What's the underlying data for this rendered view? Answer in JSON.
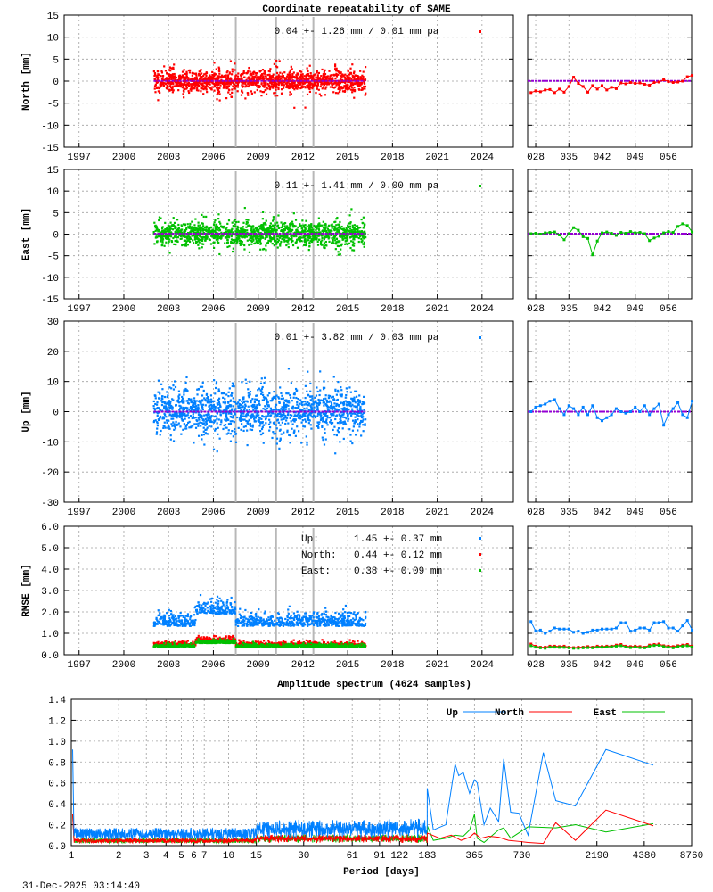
{
  "page": {
    "title": "Coordinate repeatability of SAME",
    "spectrum_title": "Amplitude spectrum (4624 samples)",
    "timestamp": "31-Dec-2025 03:14:40"
  },
  "chart_data": [
    {
      "id": "north",
      "type": "scatter",
      "ylabel": "North [mm]",
      "ylim": [
        -15,
        15
      ],
      "yticks": [
        "-15",
        "-10",
        "-5",
        "0",
        "5",
        "10",
        "15"
      ],
      "xlim": [
        1996,
        2026.1
      ],
      "xticks": [
        "1997",
        "2000",
        "2003",
        "2006",
        "2009",
        "2012",
        "2015",
        "2018",
        "2021",
        "2024"
      ],
      "annotation": "0.04 +- 1.26 mm /  0.01 mm pa",
      "mean": 0.04,
      "std": 1.26,
      "rate": 0.01,
      "color": "#ff0000",
      "time_span": [
        2002.0,
        2016.2
      ],
      "event_epochs": [
        2007.5,
        2010.2,
        2012.7
      ],
      "recent": {
        "xlim": [
          26.3,
          60.9
        ],
        "xticks": [
          "028",
          "035",
          "042",
          "049",
          "056"
        ],
        "days": [
          27,
          28,
          29,
          30,
          31,
          32,
          33,
          34,
          35,
          36,
          37,
          38,
          39,
          40,
          41,
          42,
          43,
          44,
          45,
          46,
          47,
          48,
          49,
          50,
          51,
          52,
          53,
          54,
          55,
          56,
          57,
          58,
          59,
          60,
          61
        ],
        "values": [
          -2.6,
          -2.2,
          -2.4,
          -2.0,
          -1.9,
          -2.6,
          -1.8,
          -2.5,
          -1.2,
          0.9,
          -0.5,
          -1.2,
          -2.5,
          -1.0,
          -1.8,
          -1.0,
          -2.0,
          -1.4,
          -1.7,
          -0.4,
          -0.6,
          -0.3,
          -0.5,
          -0.4,
          -0.7,
          -0.9,
          -0.3,
          -0.2,
          0.3,
          -0.1,
          -0.3,
          -0.2,
          0.0,
          1.0,
          1.3
        ]
      }
    },
    {
      "id": "east",
      "type": "scatter",
      "ylabel": "East [mm]",
      "ylim": [
        -15,
        15
      ],
      "yticks": [
        "-15",
        "-10",
        "-5",
        "0",
        "5",
        "10",
        "15"
      ],
      "xlim": [
        1996,
        2026.1
      ],
      "xticks": [
        "1997",
        "2000",
        "2003",
        "2006",
        "2009",
        "2012",
        "2015",
        "2018",
        "2021",
        "2024"
      ],
      "annotation": "0.11 +- 1.41 mm /  0.00 mm pa",
      "mean": 0.11,
      "std": 1.41,
      "rate": 0.0,
      "color": "#00c000",
      "time_span": [
        2002.0,
        2016.2
      ],
      "event_epochs": [
        2007.5,
        2010.2,
        2012.7
      ],
      "recent": {
        "xlim": [
          26.3,
          60.9
        ],
        "xticks": [
          "028",
          "035",
          "042",
          "049",
          "056"
        ],
        "days": [
          27,
          28,
          29,
          30,
          31,
          32,
          33,
          34,
          35,
          36,
          37,
          38,
          39,
          40,
          41,
          42,
          43,
          44,
          45,
          46,
          47,
          48,
          49,
          50,
          51,
          52,
          53,
          54,
          55,
          56,
          57,
          58,
          59,
          60,
          61
        ],
        "values": [
          0.1,
          0.2,
          0.0,
          0.3,
          0.4,
          0.5,
          -0.2,
          -1.3,
          0.1,
          1.5,
          0.9,
          -0.6,
          -1.0,
          -4.8,
          -1.6,
          0.3,
          0.5,
          0.2,
          -0.3,
          0.4,
          0.2,
          0.6,
          0.3,
          0.4,
          0.1,
          -1.5,
          -0.9,
          -0.5,
          0.3,
          0.6,
          0.4,
          1.8,
          2.4,
          2.0,
          0.5
        ]
      }
    },
    {
      "id": "up",
      "type": "scatter",
      "ylabel": "Up [mm]",
      "ylim": [
        -30,
        30
      ],
      "yticks": [
        "-30",
        "-20",
        "-10",
        "0",
        "10",
        "20",
        "30"
      ],
      "xlim": [
        1996,
        2026.1
      ],
      "xticks": [
        "1997",
        "2000",
        "2003",
        "2006",
        "2009",
        "2012",
        "2015",
        "2018",
        "2021",
        "2024"
      ],
      "annotation": "0.01 +- 3.82 mm /  0.03 mm pa",
      "mean": 0.01,
      "std": 3.82,
      "rate": 0.03,
      "color": "#0080ff",
      "time_span": [
        2002.0,
        2016.2
      ],
      "event_epochs": [
        2007.5,
        2010.2,
        2012.7
      ],
      "recent": {
        "xlim": [
          26.3,
          60.9
        ],
        "xticks": [
          "028",
          "035",
          "042",
          "049",
          "056"
        ],
        "days": [
          27,
          28,
          29,
          30,
          31,
          32,
          33,
          34,
          35,
          36,
          37,
          38,
          39,
          40,
          41,
          42,
          43,
          44,
          45,
          46,
          47,
          48,
          49,
          50,
          51,
          52,
          53,
          54,
          55,
          56,
          57,
          58,
          59,
          60,
          61
        ],
        "values": [
          0,
          1.5,
          2,
          2.5,
          3.5,
          4,
          1,
          -1,
          2,
          1,
          -1,
          1.5,
          -1,
          2,
          -2,
          -3,
          -2,
          -1,
          1,
          0,
          -0.5,
          0,
          1.5,
          0,
          2,
          -1,
          1,
          2.5,
          -4.5,
          -1,
          1,
          3,
          -1,
          -2,
          3.5
        ]
      }
    },
    {
      "id": "rmse",
      "type": "scatter",
      "ylabel": "RMSE [mm]",
      "ylim": [
        0,
        6
      ],
      "yticks": [
        "0.0",
        "1.0",
        "2.0",
        "3.0",
        "4.0",
        "5.0",
        "6.0"
      ],
      "xlim": [
        1996,
        2026.1
      ],
      "xticks": [
        "1997",
        "2000",
        "2003",
        "2006",
        "2009",
        "2012",
        "2015",
        "2018",
        "2021",
        "2024"
      ],
      "time_span": [
        2002.0,
        2016.2
      ],
      "event_epochs": [
        2007.5,
        2010.2,
        2012.7
      ],
      "legend": [
        {
          "name": "Up:",
          "text": "1.45 +- 0.37 mm",
          "mean": 1.45,
          "std": 0.37,
          "color": "#0080ff"
        },
        {
          "name": "North:",
          "text": "0.44 +- 0.12 mm",
          "mean": 0.44,
          "std": 0.12,
          "color": "#ff0000"
        },
        {
          "name": "East:",
          "text": "0.38 +- 0.09 mm",
          "mean": 0.38,
          "std": 0.09,
          "color": "#00c000"
        }
      ],
      "recent": {
        "xlim": [
          26.3,
          60.9
        ],
        "xticks": [
          "028",
          "035",
          "042",
          "049",
          "056"
        ],
        "days": [
          27,
          28,
          29,
          30,
          31,
          32,
          33,
          34,
          35,
          36,
          37,
          38,
          39,
          40,
          41,
          42,
          43,
          44,
          45,
          46,
          47,
          48,
          49,
          50,
          51,
          52,
          53,
          54,
          55,
          56,
          57,
          58,
          59,
          60,
          61
        ],
        "series": [
          {
            "values": [
              1.55,
              1.1,
              1.15,
              1.0,
              1.1,
              1.25,
              1.2,
              1.2,
              1.2,
              1.05,
              1.1,
              1.0,
              1.05,
              1.15,
              1.15,
              1.2,
              1.2,
              1.2,
              1.25,
              1.5,
              1.5,
              1.1,
              1.15,
              1.25,
              1.25,
              1.15,
              1.5,
              1.5,
              1.55,
              1.25,
              1.25,
              1.1,
              1.35,
              1.6,
              1.15
            ]
          },
          {
            "values": [
              0.5,
              0.4,
              0.35,
              0.35,
              0.4,
              0.4,
              0.38,
              0.4,
              0.35,
              0.33,
              0.35,
              0.35,
              0.38,
              0.35,
              0.4,
              0.38,
              0.4,
              0.4,
              0.45,
              0.48,
              0.4,
              0.38,
              0.4,
              0.38,
              0.35,
              0.45,
              0.48,
              0.5,
              0.42,
              0.4,
              0.38,
              0.42,
              0.45,
              0.48,
              0.4
            ]
          },
          {
            "values": [
              0.42,
              0.35,
              0.32,
              0.3,
              0.35,
              0.35,
              0.34,
              0.34,
              0.32,
              0.3,
              0.3,
              0.32,
              0.33,
              0.32,
              0.35,
              0.35,
              0.36,
              0.37,
              0.4,
              0.42,
              0.36,
              0.33,
              0.36,
              0.33,
              0.32,
              0.4,
              0.43,
              0.44,
              0.38,
              0.35,
              0.32,
              0.38,
              0.4,
              0.42,
              0.36
            ]
          }
        ]
      }
    },
    {
      "id": "spectrum",
      "type": "line",
      "xlabel": "Period [days]",
      "xscale": "log",
      "ylim": [
        0,
        1.4
      ],
      "yticks": [
        "0.0",
        "0.2",
        "0.4",
        "0.6",
        "0.8",
        "1.0",
        "1.2",
        "1.4"
      ],
      "xlim": [
        1,
        8760
      ],
      "xticks": [
        "1",
        "2",
        "3",
        "4",
        "5",
        "6",
        "7",
        "10",
        "15",
        "30",
        "61",
        "91",
        "122",
        "183",
        "365",
        "730",
        "2190",
        "4380",
        "8760"
      ],
      "legend_position": "top-right",
      "series": [
        {
          "name": "Up",
          "color": "#0080ff",
          "noise_level": 0.12,
          "periods": [
            183,
            200,
            240,
            275,
            290,
            310,
            340,
            365,
            380,
            420,
            460,
            520,
            560,
            620,
            700,
            800,
            1000,
            1200,
            1600,
            2500,
            5000
          ],
          "values": [
            0.55,
            0.15,
            0.2,
            0.78,
            0.67,
            0.7,
            0.5,
            0.63,
            0.6,
            0.2,
            0.36,
            0.23,
            0.83,
            0.32,
            0.31,
            0.1,
            0.89,
            0.43,
            0.38,
            0.92,
            0.77
          ]
        },
        {
          "name": "North",
          "color": "#ff0000",
          "noise_level": 0.05,
          "periods": [
            183,
            220,
            260,
            300,
            340,
            365,
            400,
            450,
            520,
            600,
            700,
            800,
            1000,
            1200,
            1600,
            2500,
            5000
          ],
          "values": [
            0.12,
            0.07,
            0.1,
            0.05,
            0.08,
            0.12,
            0.07,
            0.09,
            0.08,
            0.05,
            0.04,
            0.03,
            0.02,
            0.22,
            0.05,
            0.34,
            0.19
          ]
        },
        {
          "name": "East",
          "color": "#00c000",
          "noise_level": 0.05,
          "periods": [
            183,
            200,
            240,
            275,
            310,
            340,
            365,
            380,
            420,
            520,
            560,
            620,
            800,
            1200,
            1600,
            2500,
            5000
          ],
          "values": [
            0.19,
            0.05,
            0.07,
            0.1,
            0.09,
            0.15,
            0.3,
            0.07,
            0.03,
            0.15,
            0.17,
            0.07,
            0.18,
            0.17,
            0.2,
            0.13,
            0.21
          ]
        }
      ]
    }
  ]
}
